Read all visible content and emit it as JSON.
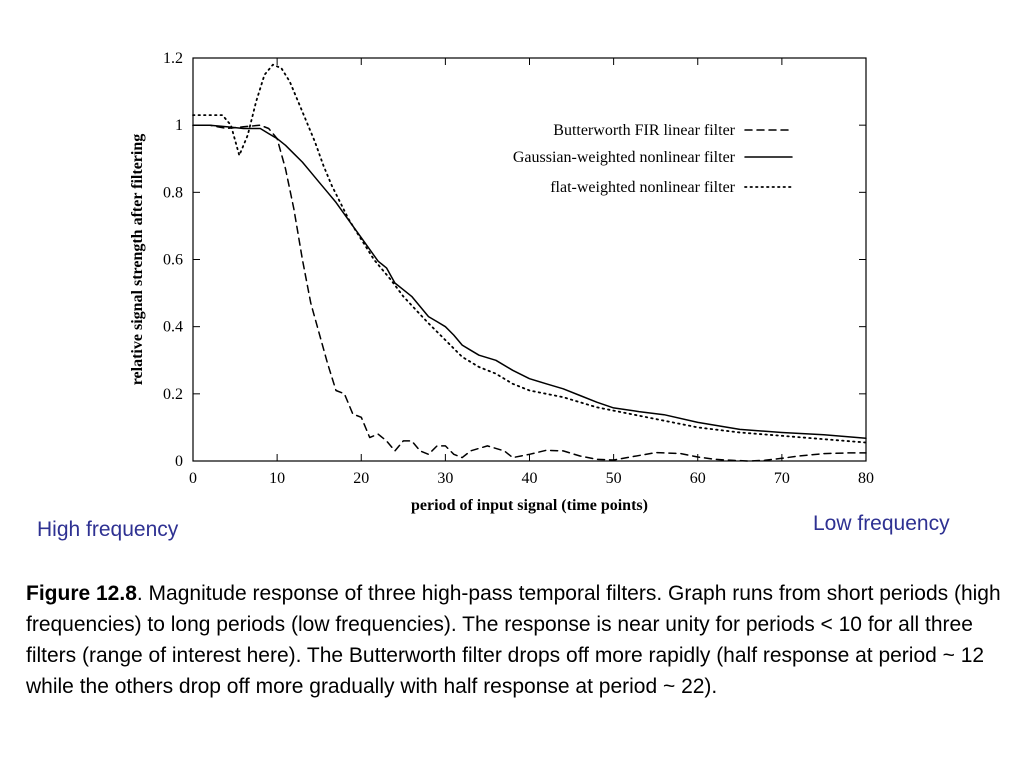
{
  "chart_data": {
    "type": "line",
    "title": "",
    "xlabel": "period of input signal (time points)",
    "ylabel": "relative signal strength after filtering",
    "xlim": [
      0,
      80
    ],
    "ylim": [
      0,
      1.2
    ],
    "x_ticks": [
      "0",
      "10",
      "20",
      "30",
      "40",
      "50",
      "60",
      "70",
      "80"
    ],
    "y_ticks": [
      "0",
      "0.2",
      "0.4",
      "0.6",
      "0.8",
      "1",
      "1.2"
    ],
    "grid": false,
    "legend_position": "top-right",
    "series": [
      {
        "name": "Butterworth FIR linear filter",
        "style": "dashed",
        "x": [
          0,
          2,
          4,
          6,
          8,
          9,
          10,
          11,
          12,
          13,
          14,
          15,
          16,
          17,
          18,
          19,
          20,
          21,
          22,
          23,
          24,
          25,
          26,
          27,
          28,
          29,
          30,
          31,
          32,
          33,
          35,
          37,
          38,
          40,
          42,
          44,
          46,
          48,
          50,
          52,
          55,
          58,
          60,
          62,
          64,
          66,
          68,
          70,
          72,
          75,
          78,
          80
        ],
        "y": [
          1.0,
          1.0,
          0.99,
          0.995,
          1.0,
          0.99,
          0.96,
          0.87,
          0.75,
          0.6,
          0.47,
          0.38,
          0.29,
          0.21,
          0.2,
          0.14,
          0.13,
          0.07,
          0.08,
          0.06,
          0.03,
          0.06,
          0.06,
          0.03,
          0.02,
          0.045,
          0.045,
          0.02,
          0.01,
          0.03,
          0.045,
          0.03,
          0.01,
          0.02,
          0.032,
          0.03,
          0.015,
          0.005,
          0.003,
          0.012,
          0.025,
          0.022,
          0.012,
          0.005,
          0.002,
          0.0,
          0.002,
          0.008,
          0.015,
          0.022,
          0.024,
          0.024
        ]
      },
      {
        "name": "Gaussian-weighted nonlinear filter",
        "style": "solid",
        "x": [
          0,
          2,
          4,
          6,
          8,
          9,
          10,
          11,
          12,
          13,
          14,
          15,
          16,
          17,
          18,
          19,
          20,
          21,
          22,
          23,
          24,
          25,
          26,
          27,
          28,
          29,
          30,
          31,
          32,
          33,
          34,
          36,
          38,
          40,
          42,
          44,
          46,
          48,
          50,
          53,
          56,
          60,
          65,
          70,
          75,
          80
        ],
        "y": [
          1.0,
          1.0,
          0.995,
          0.99,
          0.99,
          0.975,
          0.96,
          0.94,
          0.915,
          0.89,
          0.86,
          0.83,
          0.8,
          0.77,
          0.735,
          0.7,
          0.665,
          0.63,
          0.595,
          0.575,
          0.53,
          0.51,
          0.49,
          0.46,
          0.43,
          0.415,
          0.4,
          0.375,
          0.345,
          0.33,
          0.315,
          0.3,
          0.27,
          0.245,
          0.23,
          0.215,
          0.195,
          0.175,
          0.158,
          0.147,
          0.138,
          0.115,
          0.094,
          0.085,
          0.078,
          0.068
        ]
      },
      {
        "name": "flat-weighted nonlinear filter",
        "style": "dotted",
        "x": [
          0,
          2,
          3.5,
          4.5,
          5.5,
          6.5,
          7.5,
          8.5,
          9.5,
          10.5,
          11.5,
          12.5,
          13.5,
          14.5,
          15.5,
          16.5,
          17.5,
          18.5,
          19.5,
          20.5,
          21.5,
          22.5,
          23.5,
          25,
          26.5,
          28,
          30,
          32,
          34,
          36,
          38,
          40,
          44,
          48,
          52,
          56,
          60,
          65,
          70,
          75,
          80
        ],
        "y": [
          1.03,
          1.03,
          1.03,
          1.0,
          0.91,
          0.97,
          1.07,
          1.15,
          1.18,
          1.17,
          1.13,
          1.07,
          1.01,
          0.95,
          0.88,
          0.82,
          0.77,
          0.72,
          0.68,
          0.64,
          0.6,
          0.57,
          0.54,
          0.49,
          0.45,
          0.41,
          0.36,
          0.31,
          0.28,
          0.26,
          0.23,
          0.21,
          0.19,
          0.16,
          0.14,
          0.12,
          0.1,
          0.085,
          0.075,
          0.065,
          0.055
        ]
      }
    ]
  },
  "annotations": {
    "high_frequency": "High frequency",
    "low_frequency": "Low frequency"
  },
  "caption": {
    "figure_label": "Figure 12.8",
    "text": ". Magnitude response of three high-pass temporal filters.  Graph runs from short periods (high frequencies) to long periods (low frequencies).  The response is near unity for periods < 10 for all three filters (range of interest here). The Butterworth filter drops off more rapidly (half response at period ~  12 while the others drop off more gradually with half response at period ~ 22)."
  }
}
